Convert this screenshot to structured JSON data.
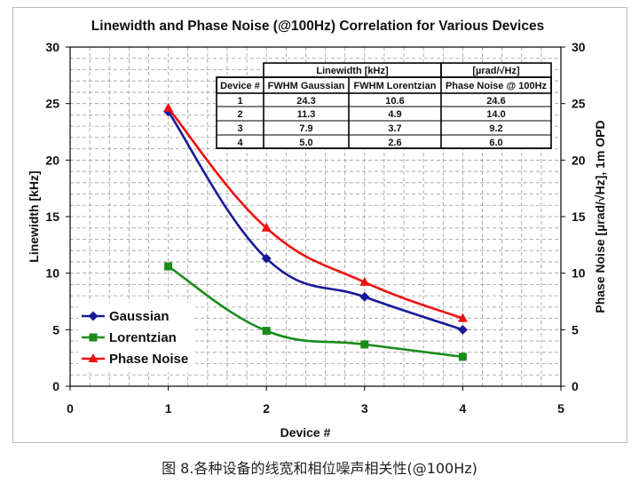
{
  "chart_data": {
    "type": "line",
    "title": "Linewidth and Phase Noise (@100Hz) Correlation for Various Devices",
    "xlabel": "Device #",
    "ylabel": "Linewidth [kHz]",
    "y2label": "Phase Noise [µrad/√Hz], 1m OPD",
    "xlim": [
      0,
      5
    ],
    "ylim": [
      0,
      30
    ],
    "y2lim": [
      0,
      30
    ],
    "xticks": [
      0,
      1,
      2,
      3,
      4,
      5
    ],
    "yticks": [
      0,
      5,
      10,
      15,
      20,
      25,
      30
    ],
    "grid": true,
    "legend_position": "bottom-left",
    "x": [
      1,
      2,
      3,
      4
    ],
    "series": [
      {
        "name": "Gaussian",
        "values": [
          24.3,
          11.3,
          7.9,
          5.0
        ],
        "color": "#1a1a99",
        "marker": "diamond"
      },
      {
        "name": "Lorentzian",
        "values": [
          10.6,
          4.9,
          3.7,
          2.6
        ],
        "color": "#1a8c1a",
        "marker": "square"
      },
      {
        "name": "Phase Noise",
        "values": [
          24.6,
          14.0,
          9.2,
          6.0
        ],
        "color": "#ee1111",
        "marker": "triangle"
      }
    ]
  },
  "table": {
    "group_headers": [
      "Linewidth [kHz]",
      "[µrad/√Hz]"
    ],
    "columns": [
      "Device #",
      "FWHM Gaussian",
      "FWHM Lorentzian",
      "Phase Noise @ 100Hz"
    ],
    "rows": [
      [
        "1",
        "24.3",
        "10.6",
        "24.6"
      ],
      [
        "2",
        "11.3",
        "4.9",
        "14.0"
      ],
      [
        "3",
        "7.9",
        "3.7",
        "9.2"
      ],
      [
        "4",
        "5.0",
        "2.6",
        "6.0"
      ]
    ]
  },
  "caption": "图 8.各种设备的线宽和相位噪声相关性(@100Hz)"
}
